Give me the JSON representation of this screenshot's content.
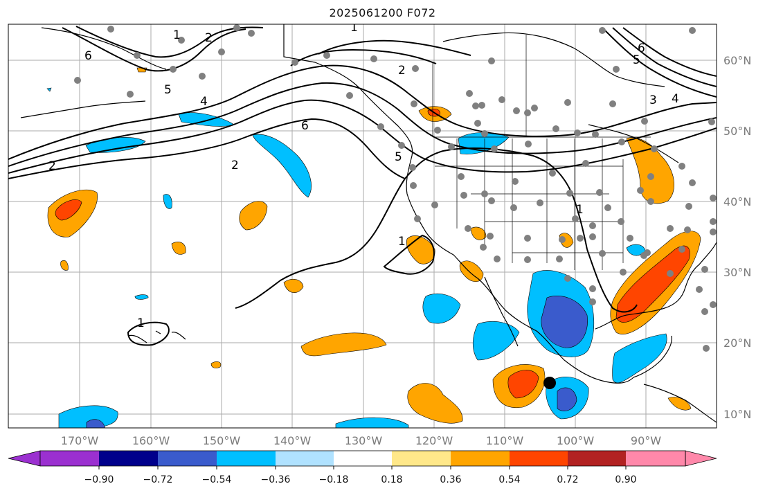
{
  "title": "2025061200 F072",
  "map": {
    "lon_ticks": [
      "170°W",
      "160°W",
      "150°W",
      "140°W",
      "130°W",
      "120°W",
      "110°W",
      "100°W",
      "90°W"
    ],
    "lat_ticks": [
      "60°N",
      "50°N",
      "40°N",
      "30°N",
      "20°N",
      "10°N"
    ],
    "contour_labels": [
      "1",
      "2",
      "6",
      "5",
      "4",
      "2",
      "6",
      "5",
      "2",
      "1",
      "1",
      "2",
      "3",
      "4",
      "5",
      "6",
      "1",
      "1"
    ]
  },
  "colorbar": {
    "tick_labels": [
      "−0.90",
      "−0.72",
      "−0.54",
      "−0.36",
      "−0.18",
      "0.18",
      "0.36",
      "0.54",
      "0.72",
      "0.90"
    ],
    "colors": [
      "#9b30d0",
      "#00008b",
      "#3a5bcc",
      "#00bfff",
      "#b0e2ff",
      "#ffffff",
      "#ffe88a",
      "#ffa500",
      "#ff4500",
      "#b22222",
      "#ff88aa"
    ]
  }
}
